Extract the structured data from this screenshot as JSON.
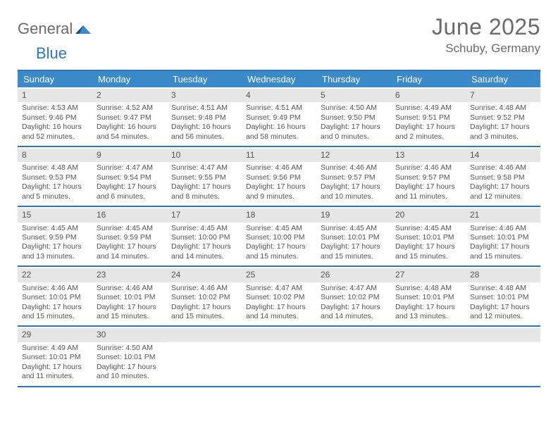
{
  "brand": {
    "word1": "General",
    "word2": "Blue"
  },
  "header": {
    "title": "June 2025",
    "location": "Schuby, Germany"
  },
  "colors": {
    "accent": "#3a89c9",
    "accent_border": "#2f77b8",
    "daynum_bg": "#e6e6e6",
    "text": "#555555",
    "logo_gray": "#6b6b6b"
  },
  "dow": [
    "Sunday",
    "Monday",
    "Tuesday",
    "Wednesday",
    "Thursday",
    "Friday",
    "Saturday"
  ],
  "weeks": [
    [
      {
        "n": "1",
        "sr": "Sunrise: 4:53 AM",
        "ss": "Sunset: 9:46 PM",
        "d1": "Daylight: 16 hours",
        "d2": "and 52 minutes."
      },
      {
        "n": "2",
        "sr": "Sunrise: 4:52 AM",
        "ss": "Sunset: 9:47 PM",
        "d1": "Daylight: 16 hours",
        "d2": "and 54 minutes."
      },
      {
        "n": "3",
        "sr": "Sunrise: 4:51 AM",
        "ss": "Sunset: 9:48 PM",
        "d1": "Daylight: 16 hours",
        "d2": "and 56 minutes."
      },
      {
        "n": "4",
        "sr": "Sunrise: 4:51 AM",
        "ss": "Sunset: 9:49 PM",
        "d1": "Daylight: 16 hours",
        "d2": "and 58 minutes."
      },
      {
        "n": "5",
        "sr": "Sunrise: 4:50 AM",
        "ss": "Sunset: 9:50 PM",
        "d1": "Daylight: 17 hours",
        "d2": "and 0 minutes."
      },
      {
        "n": "6",
        "sr": "Sunrise: 4:49 AM",
        "ss": "Sunset: 9:51 PM",
        "d1": "Daylight: 17 hours",
        "d2": "and 2 minutes."
      },
      {
        "n": "7",
        "sr": "Sunrise: 4:48 AM",
        "ss": "Sunset: 9:52 PM",
        "d1": "Daylight: 17 hours",
        "d2": "and 3 minutes."
      }
    ],
    [
      {
        "n": "8",
        "sr": "Sunrise: 4:48 AM",
        "ss": "Sunset: 9:53 PM",
        "d1": "Daylight: 17 hours",
        "d2": "and 5 minutes."
      },
      {
        "n": "9",
        "sr": "Sunrise: 4:47 AM",
        "ss": "Sunset: 9:54 PM",
        "d1": "Daylight: 17 hours",
        "d2": "and 6 minutes."
      },
      {
        "n": "10",
        "sr": "Sunrise: 4:47 AM",
        "ss": "Sunset: 9:55 PM",
        "d1": "Daylight: 17 hours",
        "d2": "and 8 minutes."
      },
      {
        "n": "11",
        "sr": "Sunrise: 4:46 AM",
        "ss": "Sunset: 9:56 PM",
        "d1": "Daylight: 17 hours",
        "d2": "and 9 minutes."
      },
      {
        "n": "12",
        "sr": "Sunrise: 4:46 AM",
        "ss": "Sunset: 9:57 PM",
        "d1": "Daylight: 17 hours",
        "d2": "and 10 minutes."
      },
      {
        "n": "13",
        "sr": "Sunrise: 4:46 AM",
        "ss": "Sunset: 9:57 PM",
        "d1": "Daylight: 17 hours",
        "d2": "and 11 minutes."
      },
      {
        "n": "14",
        "sr": "Sunrise: 4:46 AM",
        "ss": "Sunset: 9:58 PM",
        "d1": "Daylight: 17 hours",
        "d2": "and 12 minutes."
      }
    ],
    [
      {
        "n": "15",
        "sr": "Sunrise: 4:45 AM",
        "ss": "Sunset: 9:59 PM",
        "d1": "Daylight: 17 hours",
        "d2": "and 13 minutes."
      },
      {
        "n": "16",
        "sr": "Sunrise: 4:45 AM",
        "ss": "Sunset: 9:59 PM",
        "d1": "Daylight: 17 hours",
        "d2": "and 14 minutes."
      },
      {
        "n": "17",
        "sr": "Sunrise: 4:45 AM",
        "ss": "Sunset: 10:00 PM",
        "d1": "Daylight: 17 hours",
        "d2": "and 14 minutes."
      },
      {
        "n": "18",
        "sr": "Sunrise: 4:45 AM",
        "ss": "Sunset: 10:00 PM",
        "d1": "Daylight: 17 hours",
        "d2": "and 15 minutes."
      },
      {
        "n": "19",
        "sr": "Sunrise: 4:45 AM",
        "ss": "Sunset: 10:01 PM",
        "d1": "Daylight: 17 hours",
        "d2": "and 15 minutes."
      },
      {
        "n": "20",
        "sr": "Sunrise: 4:45 AM",
        "ss": "Sunset: 10:01 PM",
        "d1": "Daylight: 17 hours",
        "d2": "and 15 minutes."
      },
      {
        "n": "21",
        "sr": "Sunrise: 4:46 AM",
        "ss": "Sunset: 10:01 PM",
        "d1": "Daylight: 17 hours",
        "d2": "and 15 minutes."
      }
    ],
    [
      {
        "n": "22",
        "sr": "Sunrise: 4:46 AM",
        "ss": "Sunset: 10:01 PM",
        "d1": "Daylight: 17 hours",
        "d2": "and 15 minutes."
      },
      {
        "n": "23",
        "sr": "Sunrise: 4:46 AM",
        "ss": "Sunset: 10:01 PM",
        "d1": "Daylight: 17 hours",
        "d2": "and 15 minutes."
      },
      {
        "n": "24",
        "sr": "Sunrise: 4:46 AM",
        "ss": "Sunset: 10:02 PM",
        "d1": "Daylight: 17 hours",
        "d2": "and 15 minutes."
      },
      {
        "n": "25",
        "sr": "Sunrise: 4:47 AM",
        "ss": "Sunset: 10:02 PM",
        "d1": "Daylight: 17 hours",
        "d2": "and 14 minutes."
      },
      {
        "n": "26",
        "sr": "Sunrise: 4:47 AM",
        "ss": "Sunset: 10:02 PM",
        "d1": "Daylight: 17 hours",
        "d2": "and 14 minutes."
      },
      {
        "n": "27",
        "sr": "Sunrise: 4:48 AM",
        "ss": "Sunset: 10:01 PM",
        "d1": "Daylight: 17 hours",
        "d2": "and 13 minutes."
      },
      {
        "n": "28",
        "sr": "Sunrise: 4:48 AM",
        "ss": "Sunset: 10:01 PM",
        "d1": "Daylight: 17 hours",
        "d2": "and 12 minutes."
      }
    ],
    [
      {
        "n": "29",
        "sr": "Sunrise: 4:49 AM",
        "ss": "Sunset: 10:01 PM",
        "d1": "Daylight: 17 hours",
        "d2": "and 11 minutes."
      },
      {
        "n": "30",
        "sr": "Sunrise: 4:50 AM",
        "ss": "Sunset: 10:01 PM",
        "d1": "Daylight: 17 hours",
        "d2": "and 10 minutes."
      },
      {
        "empty": true
      },
      {
        "empty": true
      },
      {
        "empty": true
      },
      {
        "empty": true
      },
      {
        "empty": true
      }
    ]
  ]
}
